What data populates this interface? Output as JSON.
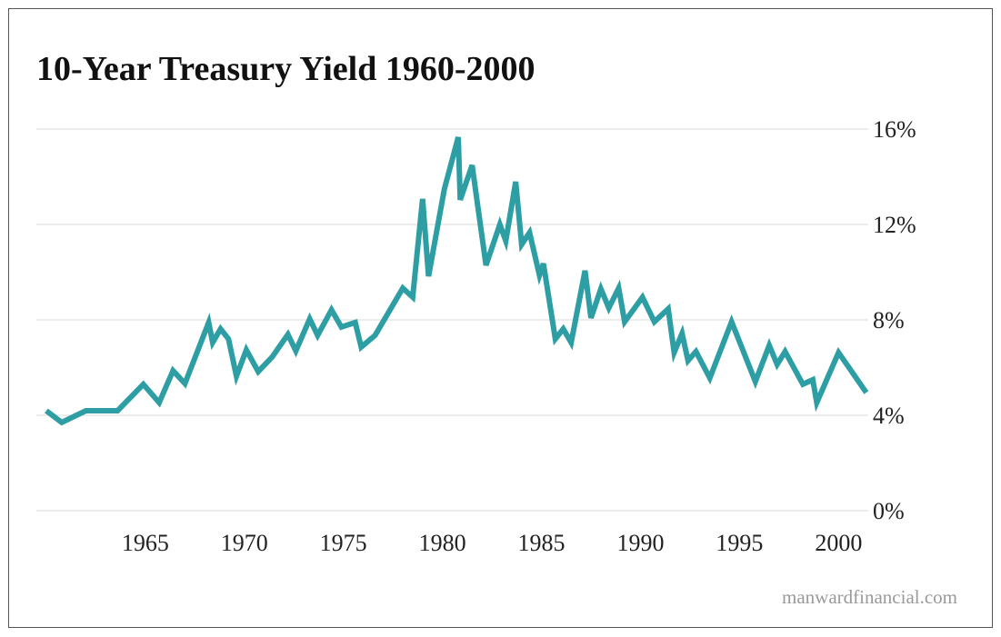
{
  "chart_data": {
    "type": "line",
    "title": "10-Year Treasury Yield 1960-2000",
    "source": "manwardfinancial.com",
    "x": [
      1960,
      1960.78,
      1962.0,
      1963.6,
      1964.9,
      1965.7,
      1966.4,
      1967.0,
      1968.2,
      1968.4,
      1968.8,
      1969.2,
      1969.6,
      1970.1,
      1970.7,
      1971.4,
      1972.2,
      1972.6,
      1973.3,
      1973.7,
      1974.4,
      1974.9,
      1975.6,
      1975.9,
      1976.6,
      1978.0,
      1978.5,
      1979.0,
      1979.3,
      1980.1,
      1980.8,
      1980.9,
      1981.5,
      1982.2,
      1982.9,
      1983.2,
      1983.7,
      1984.0,
      1984.4,
      1984.9,
      1985.1,
      1985.7,
      1986.1,
      1986.5,
      1987.2,
      1987.5,
      1988.0,
      1988.4,
      1988.9,
      1989.2,
      1990.1,
      1990.7,
      1991.4,
      1991.7,
      1992.1,
      1992.4,
      1992.8,
      1993.5,
      1994.6,
      1995.8,
      1996.5,
      1996.9,
      1997.3,
      1998.2,
      1998.7,
      1998.9,
      2000.0,
      2001.4
    ],
    "values": [
      4.19,
      3.7,
      4.19,
      4.19,
      5.3,
      4.53,
      5.87,
      5.33,
      7.89,
      7.05,
      7.62,
      7.2,
      5.64,
      6.74,
      5.83,
      6.44,
      7.39,
      6.7,
      8.04,
      7.35,
      8.42,
      7.7,
      7.89,
      6.86,
      7.35,
      9.33,
      8.95,
      13.07,
      9.83,
      13.49,
      15.66,
      13.03,
      14.48,
      10.29,
      12.0,
      11.31,
      13.79,
      11.16,
      11.66,
      9.87,
      10.36,
      7.2,
      7.62,
      7.05,
      10.06,
      8.08,
      9.3,
      8.5,
      9.33,
      7.92,
      8.95,
      7.92,
      8.46,
      6.63,
      7.43,
      6.29,
      6.67,
      5.56,
      7.92,
      5.41,
      6.93,
      6.13,
      6.67,
      5.3,
      5.49,
      4.53,
      6.63,
      4.95
    ],
    "color": "#2e9ea5",
    "xlim": [
      1959.5,
      2001.5
    ],
    "xticks": [
      1965,
      1970,
      1975,
      1980,
      1985,
      1990,
      1995,
      2000
    ],
    "ylim": [
      0,
      16
    ],
    "yticks": [
      {
        "value": 0,
        "label": "0%"
      },
      {
        "value": 4,
        "label": "4%"
      },
      {
        "value": 8,
        "label": "8%"
      },
      {
        "value": 12,
        "label": "12%"
      },
      {
        "value": 16,
        "label": "16%"
      }
    ],
    "grid": true
  }
}
